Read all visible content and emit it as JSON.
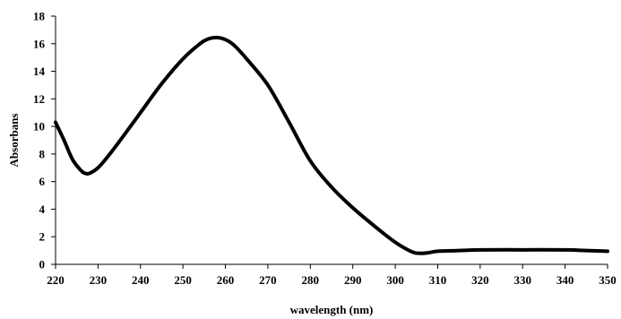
{
  "chart_data": {
    "type": "line",
    "title": "",
    "xlabel": "wavelength (nm)",
    "ylabel": "Absorbans",
    "xlim": [
      220,
      350
    ],
    "ylim": [
      0,
      18
    ],
    "x_ticks": [
      220,
      230,
      240,
      250,
      260,
      270,
      280,
      290,
      300,
      310,
      320,
      330,
      340,
      350
    ],
    "y_ticks": [
      0,
      2,
      4,
      6,
      8,
      10,
      12,
      14,
      16,
      18
    ],
    "grid": false,
    "legend": "none",
    "line_color": "#000000",
    "series": [
      {
        "x": [
          220,
          222,
          224,
          226,
          227,
          228,
          230,
          232,
          235,
          240,
          245,
          250,
          254,
          256,
          258,
          260,
          262,
          265,
          270,
          275,
          280,
          285,
          290,
          295,
          300,
          304,
          306,
          308,
          310,
          315,
          320,
          330,
          340,
          345,
          350
        ],
        "y": [
          10.3,
          9.0,
          7.6,
          6.8,
          6.6,
          6.6,
          7.0,
          7.7,
          8.9,
          11.0,
          13.1,
          14.9,
          16.0,
          16.35,
          16.45,
          16.3,
          15.9,
          14.9,
          13.0,
          10.3,
          7.5,
          5.6,
          4.1,
          2.8,
          1.6,
          0.9,
          0.8,
          0.85,
          0.95,
          1.0,
          1.05,
          1.05,
          1.05,
          1.0,
          0.95
        ]
      }
    ]
  }
}
